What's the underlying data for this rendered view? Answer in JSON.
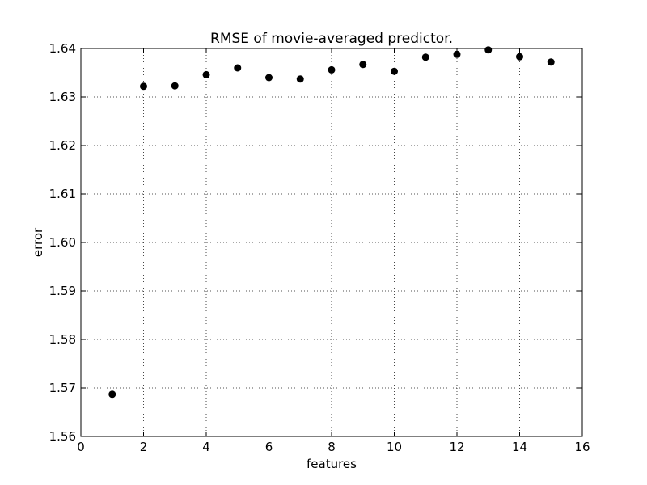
{
  "chart_data": {
    "type": "scatter",
    "title": "RMSE of movie-averaged predictor.",
    "xlabel": "features",
    "ylabel": "error",
    "xlim": [
      0,
      16
    ],
    "ylim": [
      1.56,
      1.64
    ],
    "xticks": [
      0,
      2,
      4,
      6,
      8,
      10,
      12,
      14,
      16
    ],
    "yticks": [
      1.56,
      1.57,
      1.58,
      1.59,
      1.6,
      1.61,
      1.62,
      1.63,
      1.64
    ],
    "xtick_labels": [
      "0",
      "2",
      "4",
      "6",
      "8",
      "10",
      "12",
      "14",
      "16"
    ],
    "ytick_labels": [
      "1.56",
      "1.57",
      "1.58",
      "1.59",
      "1.60",
      "1.61",
      "1.62",
      "1.63",
      "1.64"
    ],
    "grid": true,
    "marker_color": "#000000",
    "series": [
      {
        "x": [
          1,
          2,
          3,
          4,
          5,
          6,
          7,
          8,
          9,
          10,
          11,
          12,
          13,
          14,
          15
        ],
        "y": [
          1.5687,
          1.6322,
          1.6323,
          1.6346,
          1.636,
          1.634,
          1.6337,
          1.6356,
          1.6367,
          1.6353,
          1.6382,
          1.6388,
          1.6397,
          1.6383,
          1.6372
        ]
      }
    ]
  }
}
